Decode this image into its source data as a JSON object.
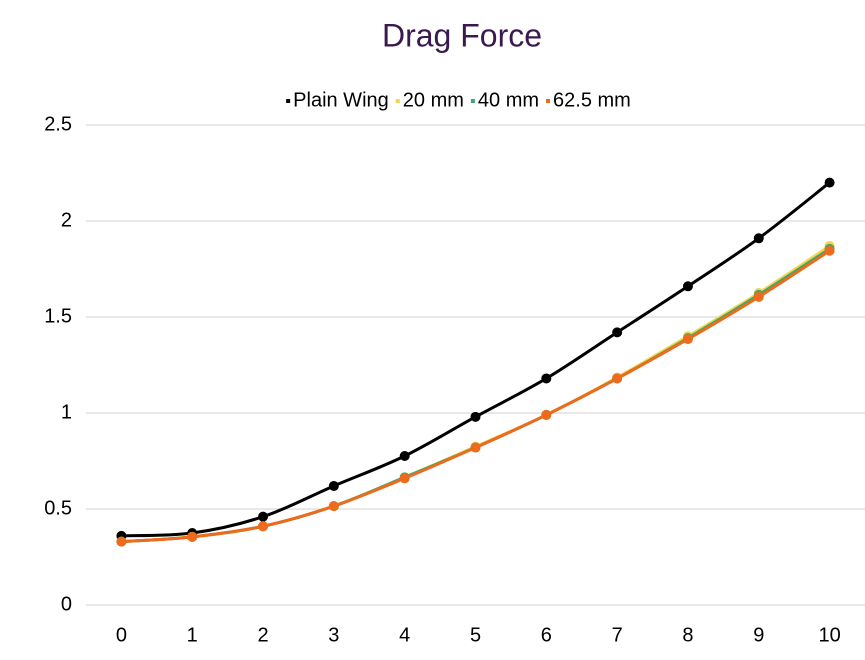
{
  "chart_data": {
    "type": "line",
    "title": "Drag Force",
    "categories": [
      "0",
      "1",
      "2",
      "3",
      "4",
      "5",
      "6",
      "7",
      "8",
      "9",
      "10"
    ],
    "series": [
      {
        "name": "Plain Wing",
        "color": "#000000",
        "values": [
          0.36,
          0.375,
          0.46,
          0.62,
          0.776,
          0.98,
          1.18,
          1.42,
          1.66,
          1.91,
          2.2
        ]
      },
      {
        "name": "20 mm",
        "color": "#f2d64b",
        "values": [
          0.33,
          0.355,
          0.41,
          0.515,
          0.665,
          0.825,
          0.99,
          1.185,
          1.4,
          1.625,
          1.87
        ]
      },
      {
        "name": "40 mm",
        "color": "#3aa874",
        "values": [
          0.33,
          0.355,
          0.41,
          0.515,
          0.665,
          0.82,
          0.99,
          1.18,
          1.39,
          1.615,
          1.855
        ]
      },
      {
        "name": "62.5 mm",
        "color": "#ee6a1c",
        "values": [
          0.33,
          0.355,
          0.41,
          0.515,
          0.66,
          0.82,
          0.99,
          1.18,
          1.385,
          1.605,
          1.845
        ]
      }
    ],
    "ylim": [
      0,
      2.5
    ],
    "yticks": [
      0,
      0.5,
      1,
      1.5,
      2,
      2.5
    ],
    "grid": true,
    "smooth": true,
    "legend": "top"
  }
}
